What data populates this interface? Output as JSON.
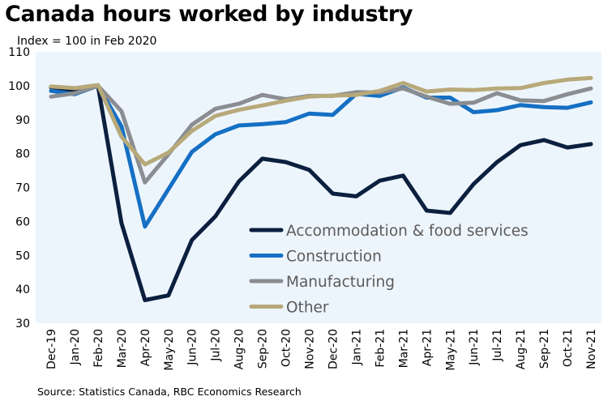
{
  "title": "Canada hours worked by industry",
  "subtitle": "Index = 100 in Feb 2020",
  "source": "Source: Statistics Canada, RBC Economics Research",
  "chart_data": {
    "type": "line",
    "title": "Canada hours worked by industry",
    "ylabel": "Index = 100 in Feb 2020",
    "xlabel": "",
    "ylim": [
      30,
      110
    ],
    "yticks": [
      30,
      40,
      50,
      60,
      70,
      80,
      90,
      100,
      110
    ],
    "legend_position": "center-right",
    "categories": [
      "Dec-19",
      "Jan-20",
      "Feb-20",
      "Mar-20",
      "Apr-20",
      "May-20",
      "Jun-20",
      "Jul-20",
      "Aug-20",
      "Sep-20",
      "Oct-20",
      "Nov-20",
      "Dec-20",
      "Jan-21",
      "Feb-21",
      "Mar-21",
      "Apr-21",
      "May-21",
      "Jun-21",
      "Jul-21",
      "Aug-21",
      "Sep-21",
      "Oct-21",
      "Nov-21"
    ],
    "series": [
      {
        "name": "Accommodation & food services",
        "color": "#0b1f3f",
        "values": [
          99.5,
          98.5,
          100,
          59.5,
          36.8,
          38.2,
          54.5,
          61.5,
          71.8,
          78.5,
          77.5,
          75.2,
          68.2,
          67.4,
          72,
          73.5,
          63.2,
          62.5,
          71,
          77.5,
          82.5,
          84,
          81.8,
          82.8
        ]
      },
      {
        "name": "Construction",
        "color": "#1570c4",
        "values": [
          98.5,
          97.5,
          100,
          88,
          58.5,
          69.5,
          80.5,
          85.7,
          88.3,
          88.7,
          89.3,
          91.8,
          91.4,
          97.6,
          97,
          99.5,
          96.5,
          96.5,
          92.2,
          92.8,
          94.3,
          93.7,
          93.5,
          95.1
        ]
      },
      {
        "name": "Manufacturing",
        "color": "#8a8d91",
        "values": [
          96.8,
          97.8,
          100,
          92.5,
          71.5,
          79.8,
          88.5,
          93.2,
          94.7,
          97.3,
          96,
          97,
          97,
          98.1,
          98,
          99.2,
          96.8,
          94.7,
          95,
          97.8,
          95.7,
          95.5,
          97.5,
          99.2
        ]
      },
      {
        "name": "Other",
        "color": "#b8a97a",
        "values": [
          99.8,
          99.3,
          100.2,
          85,
          76.8,
          80.3,
          86.7,
          91.1,
          92.9,
          94.2,
          95.6,
          96.8,
          97.1,
          97.3,
          98.5,
          100.8,
          98.3,
          98.9,
          98.7,
          99.2,
          99.3,
          100.8,
          101.8,
          102.3
        ]
      }
    ]
  }
}
